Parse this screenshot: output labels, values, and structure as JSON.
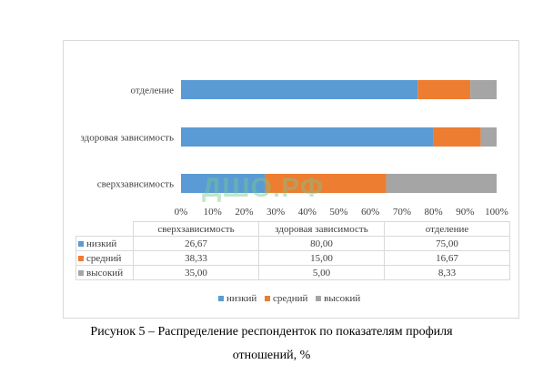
{
  "chart_data": {
    "type": "bar",
    "orientation": "horizontal",
    "stacked": true,
    "categories": [
      "сверхзависимость",
      "здоровая зависимость",
      "отделение"
    ],
    "series": [
      {
        "name": "низкий",
        "values": [
          26.67,
          80.0,
          75.0
        ],
        "color": "#5b9bd5"
      },
      {
        "name": "средний",
        "values": [
          38.33,
          15.0,
          16.67
        ],
        "color": "#ed7d31"
      },
      {
        "name": "высокий",
        "values": [
          35.0,
          5.0,
          8.33
        ],
        "color": "#a5a5a5"
      }
    ],
    "table": {
      "headers": [
        "сверхзависимость",
        "здоровая зависимость",
        "отделение"
      ],
      "rows": [
        {
          "label": "низкий",
          "cells": [
            "26,67",
            "80,00",
            "75,00"
          ]
        },
        {
          "label": "средний",
          "cells": [
            "38,33",
            "15,00",
            "16,67"
          ]
        },
        {
          "label": "высокий",
          "cells": [
            "35,00",
            "5,00",
            "8,33"
          ]
        }
      ]
    },
    "xlim": [
      0,
      100
    ],
    "xticks": [
      "0%",
      "10%",
      "20%",
      "30%",
      "40%",
      "50%",
      "60%",
      "70%",
      "80%",
      "90%",
      "100%"
    ],
    "legend_position": "bottom",
    "grid": false
  },
  "watermark": "ДШО.РФ",
  "caption": {
    "line1": "Рисунок 5 – Распределение респонденток по показателям профиля",
    "line2": "отношений, %"
  }
}
